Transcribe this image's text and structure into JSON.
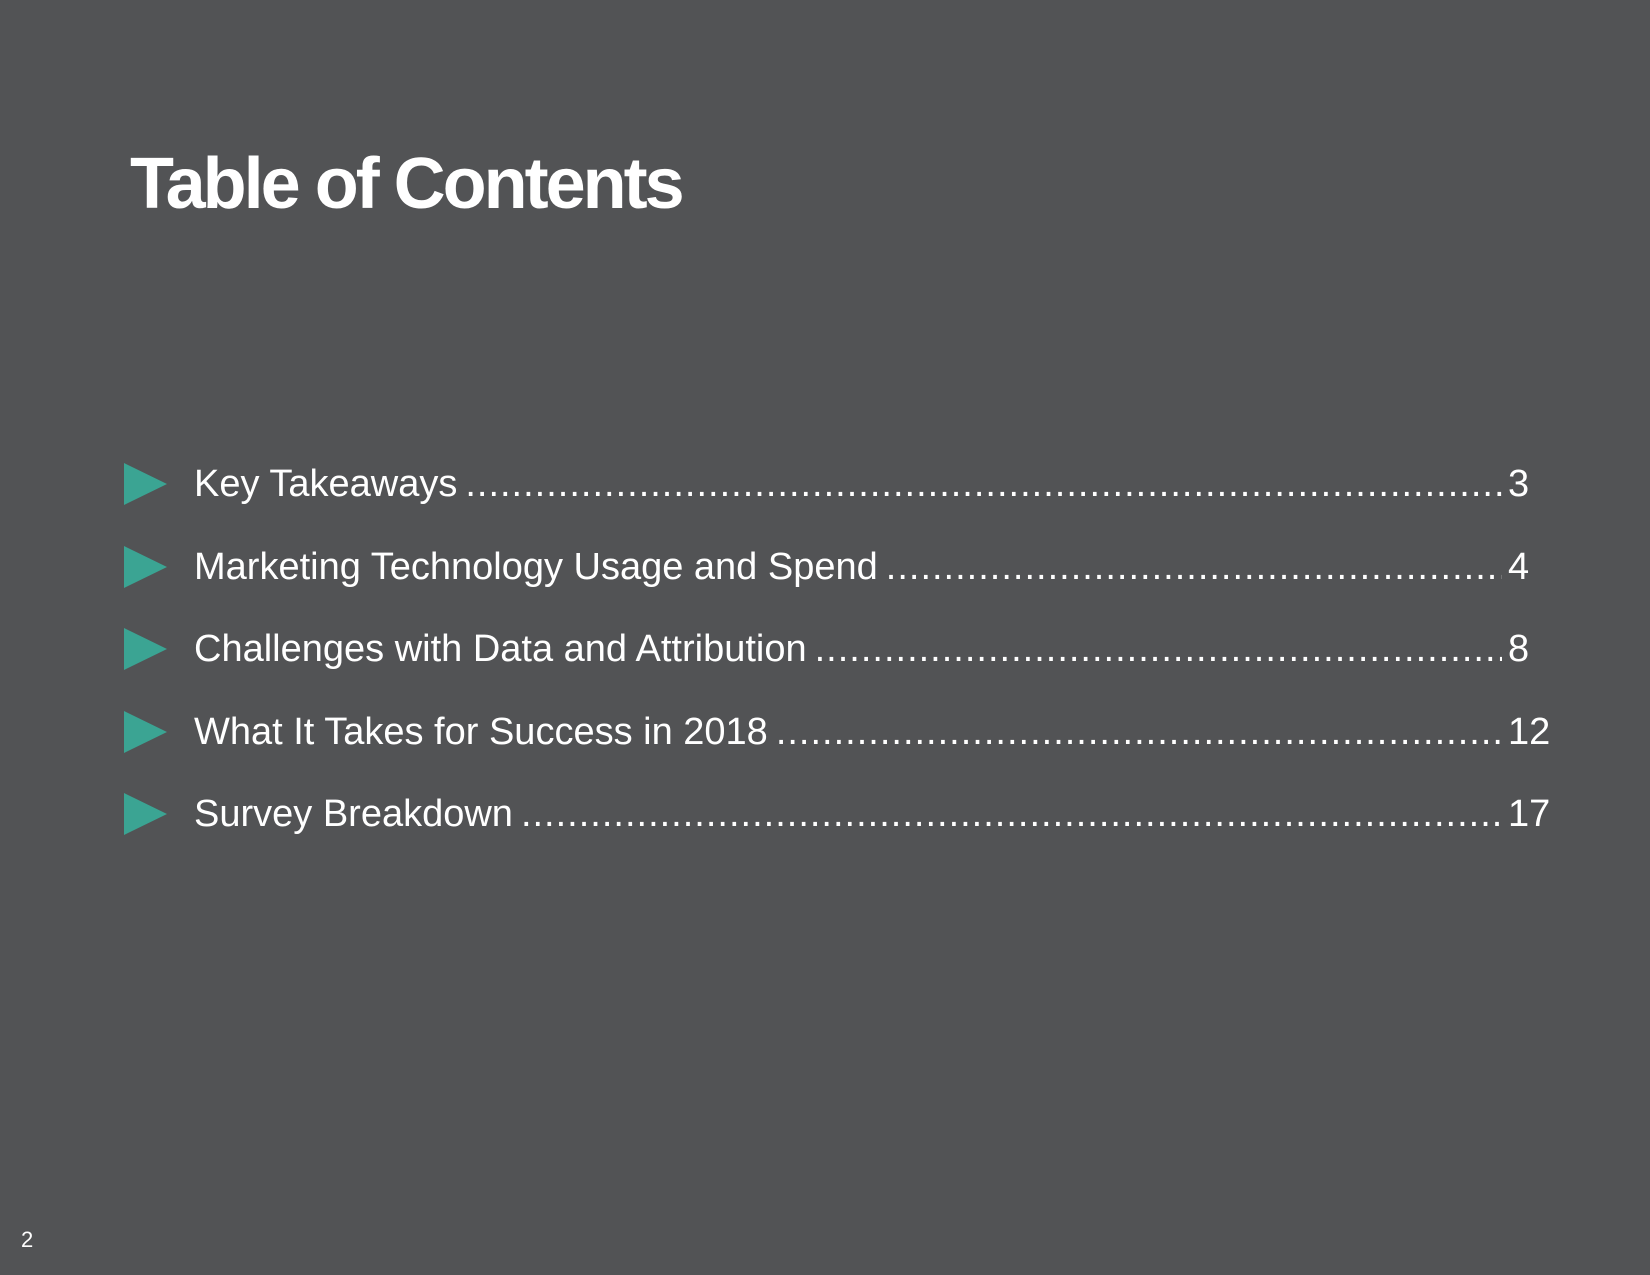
{
  "title": "Table of Contents",
  "toc": [
    {
      "label": "Key Takeaways",
      "page": "3"
    },
    {
      "label": "Marketing Technology Usage and Spend",
      "page": "4"
    },
    {
      "label": "Challenges with Data and Attribution",
      "page": "8"
    },
    {
      "label": "What It Takes for Success in 2018",
      "page": "12"
    },
    {
      "label": "Survey Breakdown",
      "page": "17"
    }
  ],
  "page_number": "2",
  "colors": {
    "background": "#525355",
    "accent": "#3ba493",
    "text": "#ffffff"
  }
}
